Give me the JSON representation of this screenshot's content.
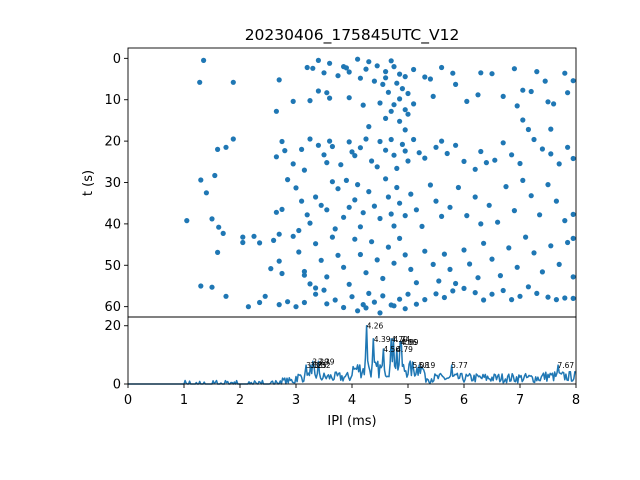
{
  "chart_data": [
    {
      "type": "scatter",
      "title": "20230406_175845UTC_V12",
      "xlabel": "IPI (ms)",
      "ylabel": "t (s)",
      "xlim": [
        0,
        8
      ],
      "ylim": [
        62.5,
        -2.5
      ],
      "y_inverted": true,
      "yticks": [
        "0",
        "10",
        "20",
        "30",
        "40",
        "50",
        "60"
      ],
      "color": "#1f77b4",
      "points": [
        [
          1.35,
          0.5
        ],
        [
          1.28,
          5.8
        ],
        [
          1.88,
          5.8
        ],
        [
          2.7,
          5.2
        ],
        [
          3.2,
          2.2
        ],
        [
          3.3,
          2.4
        ],
        [
          3.4,
          0.5
        ],
        [
          3.5,
          3.5
        ],
        [
          3.6,
          1.2
        ],
        [
          3.85,
          2.0
        ],
        [
          3.9,
          2.3
        ],
        [
          3.75,
          4.2
        ],
        [
          4.3,
          0.8
        ],
        [
          4.45,
          1.8
        ],
        [
          4.6,
          3.2
        ],
        [
          4.7,
          0.6
        ],
        [
          4.75,
          2.0
        ],
        [
          4.85,
          3.8
        ],
        [
          4.95,
          4.4
        ],
        [
          5.1,
          2.7
        ],
        [
          5.4,
          5.0
        ],
        [
          5.6,
          2.2
        ],
        [
          5.8,
          3.6
        ],
        [
          6.3,
          3.5
        ],
        [
          6.5,
          3.7
        ],
        [
          6.9,
          2.5
        ],
        [
          7.3,
          3.2
        ],
        [
          7.45,
          5.5
        ],
        [
          7.8,
          3.6
        ],
        [
          7.95,
          5.4
        ],
        [
          4.1,
          0.2
        ],
        [
          4.15,
          4.8
        ],
        [
          4.25,
          2.6
        ],
        [
          4.4,
          5.5
        ],
        [
          4.55,
          6.3
        ],
        [
          4.65,
          8.2
        ],
        [
          4.8,
          6.0
        ],
        [
          4.9,
          7.3
        ],
        [
          5.0,
          8.5
        ],
        [
          3.55,
          8.3
        ],
        [
          3.6,
          9.6
        ],
        [
          3.95,
          9.5
        ],
        [
          2.95,
          10.4
        ],
        [
          3.25,
          10.2
        ],
        [
          3.4,
          7.9
        ],
        [
          2.65,
          12.8
        ],
        [
          4.2,
          11.3
        ],
        [
          4.5,
          10.8
        ],
        [
          4.75,
          11.2
        ],
        [
          4.85,
          9.8
        ],
        [
          4.95,
          12.4
        ],
        [
          5.1,
          11.0
        ],
        [
          5.45,
          9.2
        ],
        [
          5.85,
          6.3
        ],
        [
          6.05,
          10.4
        ],
        [
          6.25,
          8.8
        ],
        [
          6.7,
          9.2
        ],
        [
          6.95,
          11.5
        ],
        [
          7.05,
          7.7
        ],
        [
          7.2,
          8.0
        ],
        [
          7.5,
          10.5
        ],
        [
          7.6,
          11.0
        ],
        [
          7.85,
          8.3
        ],
        [
          3.95,
          3.3
        ],
        [
          4.6,
          4.7
        ],
        [
          5.3,
          4.5
        ],
        [
          1.6,
          22.0
        ],
        [
          1.75,
          21.5
        ],
        [
          1.88,
          19.5
        ],
        [
          1.3,
          29.4
        ],
        [
          1.4,
          32.5
        ],
        [
          1.55,
          28.3
        ],
        [
          2.75,
          20.1
        ],
        [
          2.65,
          23.8
        ],
        [
          2.8,
          22.3
        ],
        [
          2.95,
          25.5
        ],
        [
          3.1,
          22.0
        ],
        [
          3.15,
          27.0
        ],
        [
          3.25,
          19.5
        ],
        [
          3.4,
          21.0
        ],
        [
          3.5,
          23.3
        ],
        [
          3.55,
          25.2
        ],
        [
          3.6,
          20.0
        ],
        [
          3.65,
          21.3
        ],
        [
          3.8,
          25.7
        ],
        [
          3.95,
          20.2
        ],
        [
          4.0,
          22.6
        ],
        [
          4.05,
          23.5
        ],
        [
          4.15,
          21.6
        ],
        [
          4.25,
          19.5
        ],
        [
          4.35,
          24.8
        ],
        [
          4.45,
          26.2
        ],
        [
          4.5,
          20.1
        ],
        [
          4.6,
          22.2
        ],
        [
          4.7,
          19.6
        ],
        [
          4.75,
          23.4
        ],
        [
          4.8,
          26.6
        ],
        [
          4.9,
          20.8
        ],
        [
          4.95,
          22.4
        ],
        [
          5.0,
          24.8
        ],
        [
          5.1,
          19.6
        ],
        [
          5.2,
          22.8
        ],
        [
          5.3,
          24.1
        ],
        [
          5.5,
          21.5
        ],
        [
          5.6,
          20.0
        ],
        [
          5.7,
          23.0
        ],
        [
          5.85,
          21.0
        ],
        [
          6.0,
          24.9
        ],
        [
          6.2,
          26.8
        ],
        [
          6.3,
          22.5
        ],
        [
          6.4,
          25.2
        ],
        [
          6.55,
          24.6
        ],
        [
          6.7,
          20.4
        ],
        [
          6.85,
          23.3
        ],
        [
          7.0,
          25.4
        ],
        [
          7.15,
          17.2
        ],
        [
          7.25,
          19.6
        ],
        [
          7.4,
          21.9
        ],
        [
          7.55,
          23.1
        ],
        [
          7.7,
          25.5
        ],
        [
          7.85,
          21.5
        ],
        [
          7.95,
          24.2
        ],
        [
          4.6,
          14.5
        ],
        [
          4.85,
          15.2
        ],
        [
          4.95,
          17.3
        ],
        [
          5.0,
          13.5
        ],
        [
          4.7,
          12.8
        ],
        [
          4.3,
          16.5
        ],
        [
          7.05,
          14.9
        ],
        [
          7.55,
          17.1
        ],
        [
          2.65,
          37.2
        ],
        [
          2.6,
          44.0
        ],
        [
          2.7,
          42.5
        ],
        [
          2.85,
          29.3
        ],
        [
          3.0,
          31.3
        ],
        [
          3.1,
          34.5
        ],
        [
          3.2,
          37.8
        ],
        [
          3.25,
          39.8
        ],
        [
          3.35,
          33.5
        ],
        [
          3.45,
          35.5
        ],
        [
          3.55,
          36.6
        ],
        [
          3.65,
          29.8
        ],
        [
          3.75,
          31.5
        ],
        [
          3.85,
          38.4
        ],
        [
          3.95,
          36.0
        ],
        [
          4.05,
          34.2
        ],
        [
          4.1,
          30.5
        ],
        [
          4.15,
          40.7
        ],
        [
          4.2,
          37.3
        ],
        [
          4.3,
          32.2
        ],
        [
          4.4,
          35.7
        ],
        [
          4.5,
          38.7
        ],
        [
          4.6,
          29.1
        ],
        [
          4.65,
          33.5
        ],
        [
          4.7,
          37.6
        ],
        [
          4.75,
          40.5
        ],
        [
          4.8,
          31.2
        ],
        [
          4.85,
          35.0
        ],
        [
          4.95,
          38.0
        ],
        [
          5.05,
          32.8
        ],
        [
          5.15,
          36.6
        ],
        [
          5.25,
          40.6
        ],
        [
          5.4,
          30.6
        ],
        [
          5.5,
          34.5
        ],
        [
          5.6,
          38.2
        ],
        [
          5.75,
          36.0
        ],
        [
          5.9,
          31.2
        ],
        [
          6.05,
          38.0
        ],
        [
          6.2,
          33.5
        ],
        [
          6.3,
          40.0
        ],
        [
          6.45,
          35.5
        ],
        [
          6.6,
          39.6
        ],
        [
          6.75,
          31.0
        ],
        [
          6.9,
          36.8
        ],
        [
          7.05,
          29.5
        ],
        [
          7.2,
          33.2
        ],
        [
          7.35,
          37.8
        ],
        [
          7.5,
          30.5
        ],
        [
          7.65,
          34.5
        ],
        [
          7.8,
          39.2
        ],
        [
          7.95,
          37.7
        ],
        [
          1.05,
          39.2
        ],
        [
          1.5,
          38.8
        ],
        [
          1.62,
          40.8
        ],
        [
          2.05,
          43.2
        ],
        [
          2.25,
          43.0
        ],
        [
          2.35,
          44.6
        ],
        [
          2.75,
          36.5
        ],
        [
          3.05,
          41.6
        ],
        [
          3.7,
          41.2
        ],
        [
          3.9,
          29.5
        ],
        [
          1.6,
          46.9
        ],
        [
          1.7,
          42.3
        ],
        [
          2.05,
          44.5
        ],
        [
          2.55,
          50.8
        ],
        [
          2.7,
          49.0
        ],
        [
          2.75,
          52.0
        ],
        [
          2.95,
          43.0
        ],
        [
          3.05,
          46.8
        ],
        [
          3.15,
          52.4
        ],
        [
          3.25,
          54.5
        ],
        [
          3.35,
          44.8
        ],
        [
          3.45,
          48.8
        ],
        [
          3.55,
          52.8
        ],
        [
          3.65,
          43.2
        ],
        [
          3.75,
          47.6
        ],
        [
          3.85,
          50.5
        ],
        [
          3.95,
          54.6
        ],
        [
          4.05,
          43.7
        ],
        [
          4.15,
          47.4
        ],
        [
          4.25,
          51.8
        ],
        [
          4.35,
          44.3
        ],
        [
          4.45,
          48.7
        ],
        [
          4.55,
          53.2
        ],
        [
          4.65,
          45.6
        ],
        [
          4.75,
          49.5
        ],
        [
          4.85,
          43.5
        ],
        [
          4.95,
          47.5
        ],
        [
          5.05,
          51.0
        ],
        [
          5.15,
          54.2
        ],
        [
          5.3,
          46.6
        ],
        [
          5.45,
          49.8
        ],
        [
          5.55,
          53.8
        ],
        [
          5.65,
          47.3
        ],
        [
          5.75,
          51.0
        ],
        [
          5.85,
          54.4
        ],
        [
          6.0,
          46.3
        ],
        [
          6.1,
          49.7
        ],
        [
          6.25,
          53.0
        ],
        [
          6.35,
          44.7
        ],
        [
          6.5,
          48.5
        ],
        [
          6.65,
          52.5
        ],
        [
          6.8,
          45.8
        ],
        [
          6.95,
          50.5
        ],
        [
          7.1,
          43.2
        ],
        [
          7.25,
          47.0
        ],
        [
          7.4,
          51.6
        ],
        [
          7.55,
          45.3
        ],
        [
          7.7,
          49.8
        ],
        [
          7.85,
          44.5
        ],
        [
          7.95,
          52.8
        ],
        [
          3.15,
          51.5
        ],
        [
          3.35,
          55.5
        ],
        [
          3.5,
          56.0
        ],
        [
          7.95,
          43.5
        ],
        [
          1.3,
          55.0
        ],
        [
          1.5,
          55.3
        ],
        [
          1.75,
          57.5
        ],
        [
          2.15,
          60.0
        ],
        [
          2.35,
          59.0
        ],
        [
          2.45,
          57.5
        ],
        [
          2.7,
          59.5
        ],
        [
          2.85,
          58.8
        ],
        [
          3.0,
          60.0
        ],
        [
          3.15,
          59.0
        ],
        [
          3.35,
          57.0
        ],
        [
          3.55,
          59.3
        ],
        [
          3.7,
          58.4
        ],
        [
          3.85,
          60.2
        ],
        [
          4.0,
          57.6
        ],
        [
          4.2,
          59.5
        ],
        [
          4.3,
          56.8
        ],
        [
          4.4,
          58.9
        ],
        [
          4.55,
          57.4
        ],
        [
          4.7,
          59.6
        ],
        [
          4.85,
          58.2
        ],
        [
          5.0,
          57.0
        ],
        [
          5.15,
          59.4
        ],
        [
          5.3,
          58.3
        ],
        [
          5.5,
          56.9
        ],
        [
          5.65,
          57.8
        ],
        [
          5.8,
          56.2
        ],
        [
          6.0,
          55.6
        ],
        [
          6.2,
          56.6
        ],
        [
          6.35,
          58.4
        ],
        [
          6.5,
          57.0
        ],
        [
          6.7,
          56.1
        ],
        [
          6.85,
          58.3
        ],
        [
          7.0,
          57.5
        ],
        [
          7.15,
          55.2
        ],
        [
          7.3,
          56.8
        ],
        [
          7.5,
          57.7
        ],
        [
          7.65,
          58.3
        ],
        [
          7.8,
          57.9
        ],
        [
          7.95,
          58.0
        ],
        [
          4.1,
          61.0
        ],
        [
          4.25,
          60.3
        ],
        [
          4.5,
          61.5
        ],
        [
          4.75,
          59.8
        ],
        [
          4.95,
          60.5
        ]
      ]
    },
    {
      "type": "line",
      "xlabel": "IPI (ms)",
      "ylabel": "",
      "xlim": [
        0,
        8
      ],
      "ylim": [
        0,
        23
      ],
      "xticks": [
        "0",
        "1",
        "2",
        "3",
        "4",
        "5",
        "6",
        "7",
        "8"
      ],
      "yticks": [
        "0",
        "20"
      ],
      "color": "#1f77b4",
      "peaks": [
        {
          "x": 3.18,
          "y": 6.5,
          "label": "3.18"
        },
        {
          "x": 3.25,
          "y": 6.5,
          "label": "3.25"
        },
        {
          "x": 3.29,
          "y": 7.8,
          "label": "3.29"
        },
        {
          "x": 3.32,
          "y": 6.5,
          "label": "3.32"
        },
        {
          "x": 3.39,
          "y": 7.8,
          "label": "3.39"
        },
        {
          "x": 4.26,
          "y": 20.0,
          "label": "4.26"
        },
        {
          "x": 4.39,
          "y": 15.5,
          "label": "4.39"
        },
        {
          "x": 4.56,
          "y": 12.0,
          "label": "4.56"
        },
        {
          "x": 4.7,
          "y": 15.5,
          "label": "4.70"
        },
        {
          "x": 4.74,
          "y": 15.5,
          "label": "4.74"
        },
        {
          "x": 4.79,
          "y": 12.0,
          "label": "4.79"
        },
        {
          "x": 4.86,
          "y": 14.5,
          "label": "4.86"
        },
        {
          "x": 4.89,
          "y": 14.5,
          "label": "4.89"
        },
        {
          "x": 5.08,
          "y": 6.5,
          "label": "5.08"
        },
        {
          "x": 5.19,
          "y": 6.5,
          "label": "5.19"
        },
        {
          "x": 5.77,
          "y": 6.5,
          "label": "5.77"
        },
        {
          "x": 7.67,
          "y": 6.5,
          "label": "7.67"
        }
      ]
    }
  ]
}
